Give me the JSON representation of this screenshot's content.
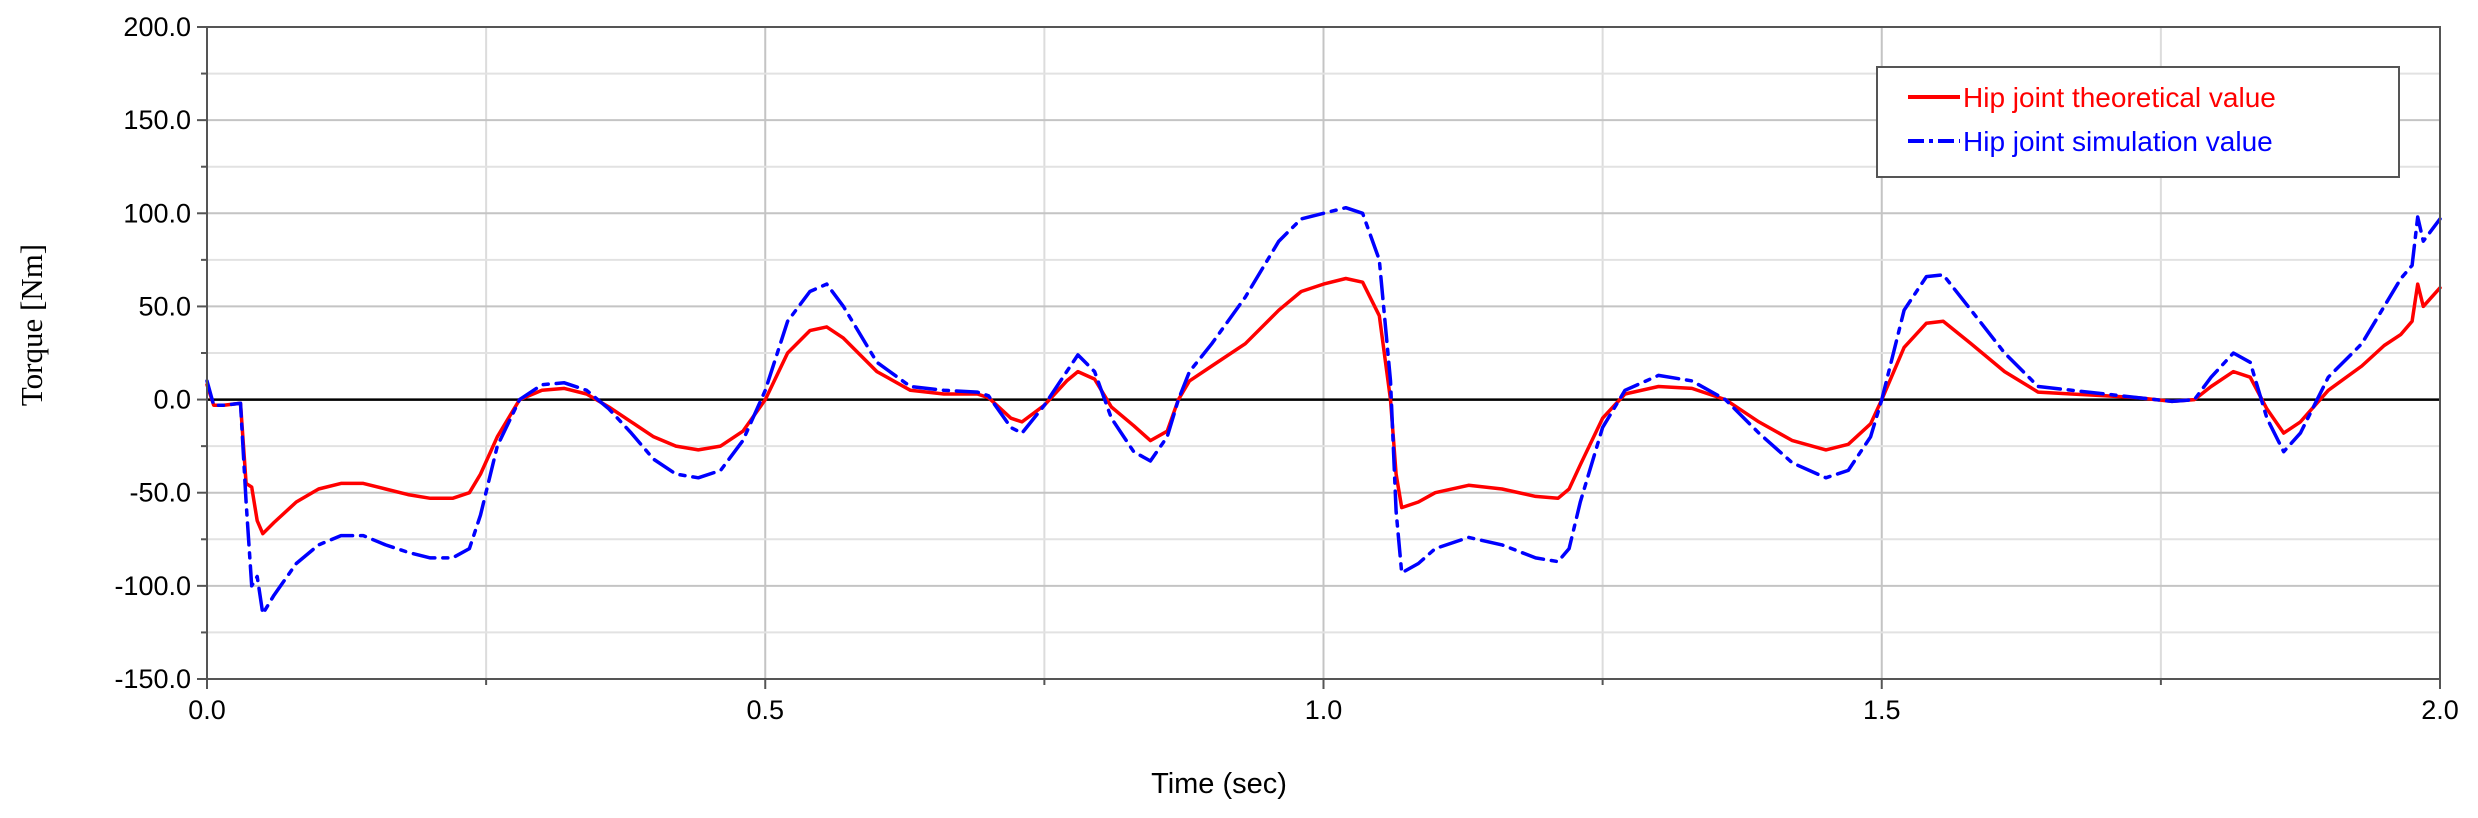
{
  "chart_data": {
    "type": "line",
    "xlabel": "Time (sec)",
    "ylabel": "Torque [Nm]",
    "xlim": [
      0,
      2.0
    ],
    "ylim": [
      -150,
      200
    ],
    "x_major_ticks": [
      0,
      0.5,
      1.0,
      1.5,
      2.0
    ],
    "x_tick_labels": [
      "0.0",
      "0.5",
      "1.0",
      "1.5",
      "2.0"
    ],
    "y_major_ticks": [
      -150,
      -100,
      -50,
      0,
      50,
      100,
      150,
      200
    ],
    "y_tick_labels": [
      "-150.0",
      "-100.0",
      "-50.0",
      "0.0",
      "50.0",
      "100.0",
      "150.0",
      "200.0"
    ],
    "grid": true,
    "legend_position": "top-right",
    "series": [
      {
        "name": "Hip joint theoretical value",
        "color": "#ff0000",
        "style": "solid",
        "points": [
          [
            0.0,
            8
          ],
          [
            0.006,
            -3
          ],
          [
            0.015,
            -3
          ],
          [
            0.03,
            -2
          ],
          [
            0.035,
            -45
          ],
          [
            0.04,
            -47
          ],
          [
            0.045,
            -65
          ],
          [
            0.05,
            -72
          ],
          [
            0.06,
            -66
          ],
          [
            0.08,
            -55
          ],
          [
            0.1,
            -48
          ],
          [
            0.12,
            -45
          ],
          [
            0.14,
            -45
          ],
          [
            0.16,
            -48
          ],
          [
            0.18,
            -51
          ],
          [
            0.2,
            -53
          ],
          [
            0.22,
            -53
          ],
          [
            0.235,
            -50
          ],
          [
            0.245,
            -40
          ],
          [
            0.26,
            -20
          ],
          [
            0.28,
            0
          ],
          [
            0.3,
            5
          ],
          [
            0.32,
            6
          ],
          [
            0.34,
            3
          ],
          [
            0.36,
            -4
          ],
          [
            0.38,
            -12
          ],
          [
            0.4,
            -20
          ],
          [
            0.42,
            -25
          ],
          [
            0.44,
            -27
          ],
          [
            0.46,
            -25
          ],
          [
            0.48,
            -17
          ],
          [
            0.5,
            0
          ],
          [
            0.52,
            25
          ],
          [
            0.54,
            37
          ],
          [
            0.555,
            39
          ],
          [
            0.57,
            33
          ],
          [
            0.6,
            15
          ],
          [
            0.63,
            5
          ],
          [
            0.66,
            3
          ],
          [
            0.69,
            3
          ],
          [
            0.7,
            1
          ],
          [
            0.72,
            -10
          ],
          [
            0.73,
            -12
          ],
          [
            0.75,
            -3
          ],
          [
            0.77,
            10
          ],
          [
            0.78,
            15
          ],
          [
            0.795,
            11
          ],
          [
            0.81,
            -4
          ],
          [
            0.83,
            -14
          ],
          [
            0.845,
            -22
          ],
          [
            0.86,
            -17
          ],
          [
            0.87,
            0
          ],
          [
            0.88,
            10
          ],
          [
            0.9,
            18
          ],
          [
            0.93,
            30
          ],
          [
            0.96,
            48
          ],
          [
            0.98,
            58
          ],
          [
            1.0,
            62
          ],
          [
            1.02,
            65
          ],
          [
            1.035,
            63
          ],
          [
            1.05,
            45
          ],
          [
            1.06,
            0
          ],
          [
            1.065,
            -40
          ],
          [
            1.07,
            -58
          ],
          [
            1.085,
            -55
          ],
          [
            1.1,
            -50
          ],
          [
            1.13,
            -46
          ],
          [
            1.16,
            -48
          ],
          [
            1.19,
            -52
          ],
          [
            1.21,
            -53
          ],
          [
            1.22,
            -48
          ],
          [
            1.23,
            -35
          ],
          [
            1.25,
            -10
          ],
          [
            1.27,
            3
          ],
          [
            1.3,
            7
          ],
          [
            1.33,
            6
          ],
          [
            1.36,
            0
          ],
          [
            1.39,
            -12
          ],
          [
            1.42,
            -22
          ],
          [
            1.45,
            -27
          ],
          [
            1.47,
            -24
          ],
          [
            1.49,
            -13
          ],
          [
            1.5,
            0
          ],
          [
            1.52,
            28
          ],
          [
            1.54,
            41
          ],
          [
            1.555,
            42
          ],
          [
            1.58,
            30
          ],
          [
            1.61,
            15
          ],
          [
            1.64,
            4
          ],
          [
            1.67,
            3
          ],
          [
            1.7,
            2
          ],
          [
            1.73,
            1
          ],
          [
            1.76,
            -1
          ],
          [
            1.78,
            0
          ],
          [
            1.795,
            7
          ],
          [
            1.815,
            15
          ],
          [
            1.83,
            12
          ],
          [
            1.845,
            -5
          ],
          [
            1.86,
            -18
          ],
          [
            1.875,
            -12
          ],
          [
            1.9,
            5
          ],
          [
            1.93,
            18
          ],
          [
            1.95,
            29
          ],
          [
            1.965,
            35
          ],
          [
            1.975,
            42
          ],
          [
            1.98,
            62
          ],
          [
            1.985,
            50
          ],
          [
            2.0,
            60
          ]
        ]
      },
      {
        "name": "Hip joint simulation value",
        "color": "#0000ff",
        "style": "dashdot",
        "points": [
          [
            0.0,
            10
          ],
          [
            0.006,
            -3
          ],
          [
            0.015,
            -3
          ],
          [
            0.03,
            -2
          ],
          [
            0.035,
            -55
          ],
          [
            0.04,
            -100
          ],
          [
            0.045,
            -95
          ],
          [
            0.05,
            -115
          ],
          [
            0.06,
            -105
          ],
          [
            0.08,
            -88
          ],
          [
            0.1,
            -78
          ],
          [
            0.12,
            -73
          ],
          [
            0.14,
            -73
          ],
          [
            0.16,
            -78
          ],
          [
            0.18,
            -82
          ],
          [
            0.2,
            -85
          ],
          [
            0.22,
            -85
          ],
          [
            0.235,
            -80
          ],
          [
            0.245,
            -62
          ],
          [
            0.26,
            -25
          ],
          [
            0.28,
            0
          ],
          [
            0.3,
            8
          ],
          [
            0.32,
            9
          ],
          [
            0.34,
            5
          ],
          [
            0.36,
            -5
          ],
          [
            0.38,
            -18
          ],
          [
            0.4,
            -32
          ],
          [
            0.42,
            -40
          ],
          [
            0.44,
            -42
          ],
          [
            0.46,
            -38
          ],
          [
            0.48,
            -22
          ],
          [
            0.5,
            5
          ],
          [
            0.52,
            42
          ],
          [
            0.54,
            58
          ],
          [
            0.555,
            62
          ],
          [
            0.57,
            50
          ],
          [
            0.6,
            20
          ],
          [
            0.63,
            7
          ],
          [
            0.66,
            5
          ],
          [
            0.69,
            4
          ],
          [
            0.7,
            2
          ],
          [
            0.72,
            -15
          ],
          [
            0.73,
            -18
          ],
          [
            0.75,
            -3
          ],
          [
            0.77,
            15
          ],
          [
            0.78,
            24
          ],
          [
            0.795,
            15
          ],
          [
            0.81,
            -10
          ],
          [
            0.83,
            -28
          ],
          [
            0.845,
            -33
          ],
          [
            0.86,
            -20
          ],
          [
            0.87,
            0
          ],
          [
            0.88,
            15
          ],
          [
            0.9,
            30
          ],
          [
            0.93,
            55
          ],
          [
            0.96,
            85
          ],
          [
            0.98,
            97
          ],
          [
            1.0,
            100
          ],
          [
            1.02,
            103
          ],
          [
            1.035,
            100
          ],
          [
            1.05,
            75
          ],
          [
            1.06,
            10
          ],
          [
            1.065,
            -60
          ],
          [
            1.07,
            -93
          ],
          [
            1.085,
            -88
          ],
          [
            1.1,
            -80
          ],
          [
            1.13,
            -74
          ],
          [
            1.16,
            -78
          ],
          [
            1.19,
            -85
          ],
          [
            1.21,
            -87
          ],
          [
            1.22,
            -80
          ],
          [
            1.23,
            -55
          ],
          [
            1.25,
            -15
          ],
          [
            1.27,
            5
          ],
          [
            1.3,
            13
          ],
          [
            1.33,
            10
          ],
          [
            1.36,
            0
          ],
          [
            1.39,
            -18
          ],
          [
            1.42,
            -34
          ],
          [
            1.45,
            -42
          ],
          [
            1.47,
            -38
          ],
          [
            1.49,
            -20
          ],
          [
            1.5,
            0
          ],
          [
            1.52,
            48
          ],
          [
            1.54,
            66
          ],
          [
            1.555,
            67
          ],
          [
            1.58,
            48
          ],
          [
            1.61,
            25
          ],
          [
            1.64,
            7
          ],
          [
            1.67,
            5
          ],
          [
            1.7,
            3
          ],
          [
            1.73,
            1
          ],
          [
            1.76,
            -1
          ],
          [
            1.78,
            0
          ],
          [
            1.795,
            12
          ],
          [
            1.815,
            25
          ],
          [
            1.83,
            20
          ],
          [
            1.845,
            -10
          ],
          [
            1.86,
            -28
          ],
          [
            1.875,
            -18
          ],
          [
            1.9,
            12
          ],
          [
            1.93,
            30
          ],
          [
            1.95,
            50
          ],
          [
            1.965,
            65
          ],
          [
            1.975,
            72
          ],
          [
            1.98,
            98
          ],
          [
            1.985,
            85
          ],
          [
            2.0,
            97
          ]
        ]
      }
    ]
  }
}
